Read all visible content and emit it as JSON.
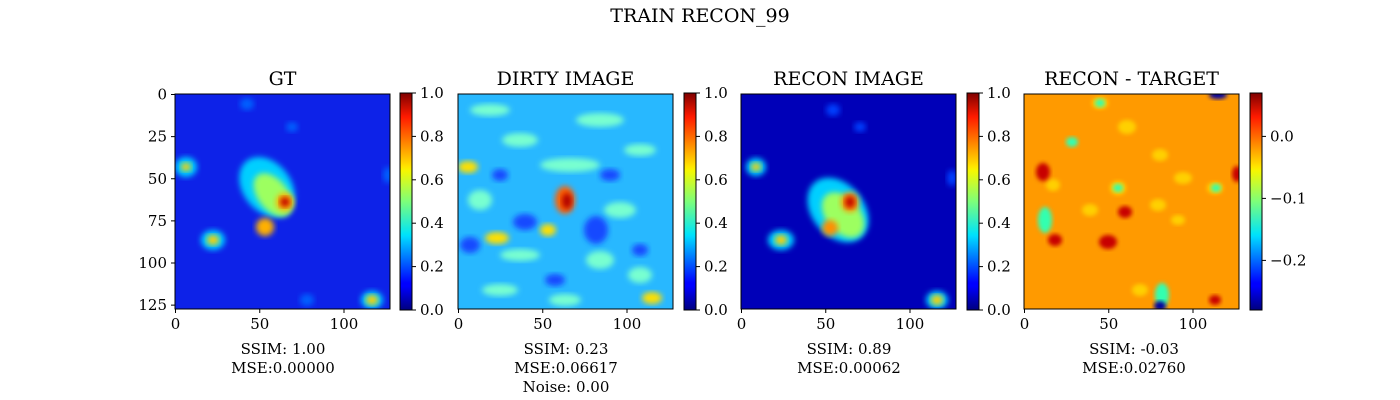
{
  "figure": {
    "title": "TRAIN RECON_99"
  },
  "chart_data": [
    {
      "type": "heatmap",
      "title": "GT",
      "colormap": "jet",
      "xlim": [
        0,
        127
      ],
      "ylim": [
        127,
        0
      ],
      "xticks": [
        "0",
        "50",
        "100"
      ],
      "yticks": [
        "0",
        "25",
        "50",
        "75",
        "100",
        "125"
      ],
      "colorbar": {
        "range": [
          0.0,
          1.0
        ],
        "ticks": [
          "0.0",
          "0.2",
          "0.4",
          "0.6",
          "0.8",
          "1.0"
        ]
      },
      "metrics": [
        "SSIM: 1.00",
        "MSE:0.00000"
      ]
    },
    {
      "type": "heatmap",
      "title": "DIRTY IMAGE",
      "colormap": "jet",
      "xlim": [
        0,
        127
      ],
      "ylim": [
        127,
        0
      ],
      "xticks": [
        "0",
        "50",
        "100"
      ],
      "colorbar": {
        "range": [
          0.0,
          1.0
        ],
        "ticks": [
          "0.0",
          "0.2",
          "0.4",
          "0.6",
          "0.8",
          "1.0"
        ]
      },
      "metrics": [
        "SSIM: 0.23",
        "MSE:0.06617",
        "Noise: 0.00"
      ]
    },
    {
      "type": "heatmap",
      "title": "RECON IMAGE",
      "colormap": "jet",
      "xlim": [
        0,
        127
      ],
      "ylim": [
        127,
        0
      ],
      "xticks": [
        "0",
        "50",
        "100"
      ],
      "colorbar": {
        "range": [
          0.0,
          1.0
        ],
        "ticks": [
          "0.0",
          "0.2",
          "0.4",
          "0.6",
          "0.8",
          "1.0"
        ]
      },
      "metrics": [
        "SSIM: 0.89",
        "MSE:0.00062"
      ]
    },
    {
      "type": "heatmap",
      "title": "RECON - TARGET",
      "colormap": "jet",
      "xlim": [
        0,
        127
      ],
      "ylim": [
        127,
        0
      ],
      "xticks": [
        "0",
        "50",
        "100"
      ],
      "colorbar": {
        "range": [
          -0.28,
          0.07
        ],
        "ticks": [
          "0.0",
          "−0.1",
          "−0.2"
        ]
      },
      "metrics": [
        "SSIM: -0.03",
        "MSE:0.02760"
      ]
    }
  ]
}
